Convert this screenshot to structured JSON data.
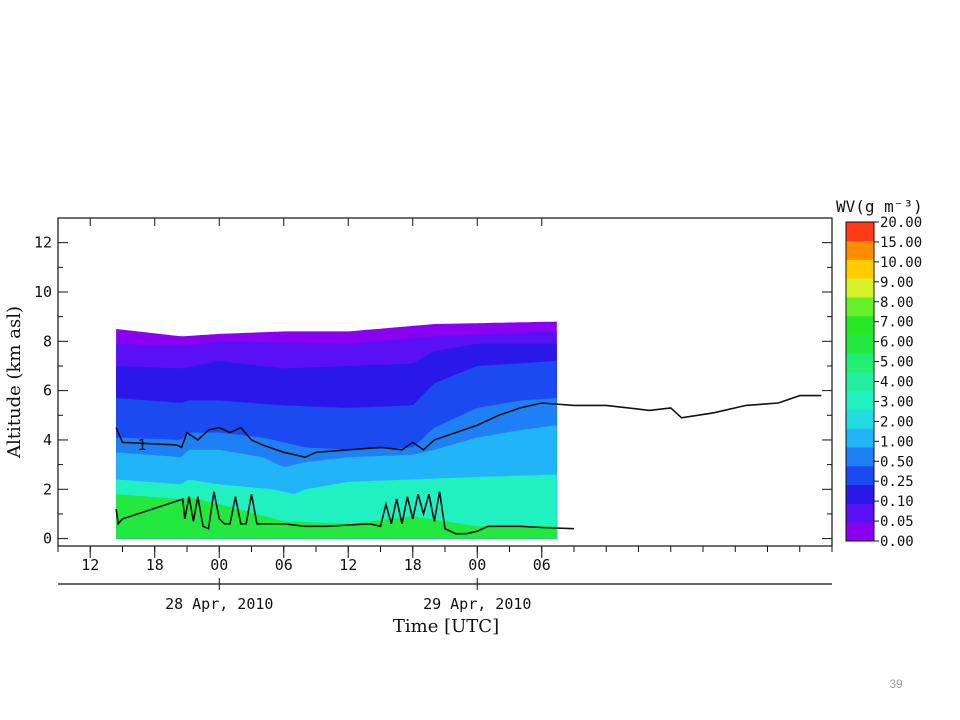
{
  "chart_data": {
    "type": "heatmap",
    "title": "",
    "ylabel": "Altitude (km asl)",
    "xlabel": "Time [UTC]",
    "ylim": [
      0,
      13
    ],
    "y_ticks": [
      0,
      2,
      4,
      6,
      8,
      10,
      12
    ],
    "x_range_hours": [
      -15,
      57
    ],
    "x_tick_labels": [
      {
        "hour": -12,
        "label": "12"
      },
      {
        "hour": -6,
        "label": "18"
      },
      {
        "hour": 0,
        "label": "00"
      },
      {
        "hour": 6,
        "label": "06"
      },
      {
        "hour": 12,
        "label": "12"
      },
      {
        "hour": 18,
        "label": "18"
      },
      {
        "hour": 24,
        "label": "00"
      },
      {
        "hour": 30,
        "label": "06"
      }
    ],
    "date_labels": [
      {
        "hour": 0,
        "label": "28 Apr, 2010"
      },
      {
        "hour": 24,
        "label": "29 Apr, 2010"
      }
    ],
    "colorbar": {
      "title": "WV(g m⁻³)",
      "levels": [
        "0.00",
        "0.05",
        "0.10",
        "0.25",
        "0.50",
        "1.00",
        "2.00",
        "3.00",
        "4.00",
        "5.00",
        "6.00",
        "7.00",
        "8.00",
        "9.00",
        "10.00",
        "15.00",
        "20.00"
      ],
      "colors": [
        "#8a00f0",
        "#5a10f5",
        "#2a18e8",
        "#1a4af0",
        "#1f7ff5",
        "#22b4f8",
        "#21dde0",
        "#21f0c0",
        "#22f0a0",
        "#22ee70",
        "#22e840",
        "#28e828",
        "#66f02a",
        "#d8f22a",
        "#ffcc00",
        "#ff8c00",
        "#ff3a14"
      ]
    },
    "data_window_hours": [
      -9.6,
      31.4
    ],
    "field_layers": [
      {
        "name": "> 5.00",
        "color": "#22e840",
        "top_km": [
          [
            -9.6,
            1.8
          ],
          [
            -3.5,
            1.6
          ],
          [
            -2.9,
            1.7
          ],
          [
            0,
            1.4
          ],
          [
            6,
            0.7
          ],
          [
            12,
            0.6
          ],
          [
            18,
            0.9
          ],
          [
            24,
            0.5
          ],
          [
            31.4,
            0.5
          ]
        ]
      },
      {
        "name": "3.00 - 5.00",
        "color": "#21f0c0",
        "top_km": [
          [
            -9.6,
            2.4
          ],
          [
            -3.5,
            2.2
          ],
          [
            -2.9,
            2.4
          ],
          [
            0,
            2.2
          ],
          [
            5,
            2.0
          ],
          [
            7,
            1.8
          ],
          [
            8,
            2.0
          ],
          [
            12,
            2.3
          ],
          [
            18,
            2.4
          ],
          [
            24,
            2.5
          ],
          [
            31.4,
            2.6
          ]
        ]
      },
      {
        "name": "1.00 - 3.00",
        "color": "#22b4f8",
        "top_km": [
          [
            -9.6,
            3.5
          ],
          [
            -3.5,
            3.3
          ],
          [
            -2.9,
            3.6
          ],
          [
            0,
            3.6
          ],
          [
            4,
            3.3
          ],
          [
            6,
            2.9
          ],
          [
            8,
            3.1
          ],
          [
            12,
            3.3
          ],
          [
            18,
            3.4
          ],
          [
            20,
            3.6
          ],
          [
            24,
            4.1
          ],
          [
            28,
            4.4
          ],
          [
            31.4,
            4.6
          ]
        ]
      },
      {
        "name": "0.50 - 1.00",
        "color": "#1f7ff5",
        "top_km": [
          [
            -9.6,
            4.1
          ],
          [
            -3.5,
            4.0
          ],
          [
            -2.9,
            4.3
          ],
          [
            0,
            4.3
          ],
          [
            4,
            4.1
          ],
          [
            6,
            3.9
          ],
          [
            8,
            3.7
          ],
          [
            12,
            3.6
          ],
          [
            18,
            3.7
          ],
          [
            20,
            4.5
          ],
          [
            24,
            5.3
          ],
          [
            28,
            5.6
          ],
          [
            31.4,
            5.7
          ]
        ]
      },
      {
        "name": "0.25 - 0.50",
        "color": "#1a4af0",
        "top_km": [
          [
            -9.6,
            5.7
          ],
          [
            -3.5,
            5.5
          ],
          [
            -2.9,
            5.6
          ],
          [
            0,
            5.6
          ],
          [
            6,
            5.4
          ],
          [
            12,
            5.3
          ],
          [
            18,
            5.4
          ],
          [
            20,
            6.3
          ],
          [
            24,
            7.0
          ],
          [
            31.4,
            7.2
          ]
        ]
      },
      {
        "name": "0.10 - 0.25",
        "color": "#2a18e8",
        "top_km": [
          [
            -9.6,
            7.0
          ],
          [
            -3.5,
            6.9
          ],
          [
            0,
            7.2
          ],
          [
            6,
            6.9
          ],
          [
            12,
            7.0
          ],
          [
            18,
            7.1
          ],
          [
            20,
            7.6
          ],
          [
            24,
            7.9
          ],
          [
            31.4,
            7.9
          ]
        ]
      },
      {
        "name": "0.05 - 0.10",
        "color": "#5a10f5",
        "top_km": [
          [
            -9.6,
            7.9
          ],
          [
            -3.5,
            7.8
          ],
          [
            0,
            8.0
          ],
          [
            12,
            7.9
          ],
          [
            20,
            8.2
          ],
          [
            31.4,
            8.4
          ]
        ]
      },
      {
        "name": "< 0.05",
        "color": "#8a00f0",
        "top_km": [
          [
            -9.6,
            8.5
          ],
          [
            -3.5,
            8.2
          ],
          [
            0,
            8.3
          ],
          [
            6,
            8.4
          ],
          [
            12,
            8.4
          ],
          [
            20,
            8.7
          ],
          [
            31.4,
            8.8
          ]
        ]
      }
    ],
    "contour_upper_1": [
      [
        -9.6,
        4.5
      ],
      [
        -9.0,
        3.9
      ],
      [
        -4.0,
        3.8
      ],
      [
        -3.5,
        3.7
      ],
      [
        -3.0,
        4.3
      ],
      [
        -2.0,
        4.0
      ],
      [
        -1.0,
        4.4
      ],
      [
        0.0,
        4.5
      ],
      [
        1.0,
        4.3
      ],
      [
        2.0,
        4.5
      ],
      [
        3.0,
        4.0
      ],
      [
        4.0,
        3.8
      ],
      [
        6.0,
        3.5
      ],
      [
        8.0,
        3.3
      ],
      [
        9.0,
        3.5
      ],
      [
        12.0,
        3.6
      ],
      [
        15.0,
        3.7
      ],
      [
        17.0,
        3.6
      ],
      [
        18.0,
        3.9
      ],
      [
        19.0,
        3.6
      ],
      [
        20.0,
        4.0
      ],
      [
        22.0,
        4.3
      ],
      [
        24.0,
        4.6
      ],
      [
        26.0,
        5.0
      ],
      [
        28.0,
        5.3
      ],
      [
        30.0,
        5.5
      ],
      [
        33.0,
        5.4
      ],
      [
        36.0,
        5.4
      ],
      [
        40.0,
        5.2
      ],
      [
        42.0,
        5.3
      ],
      [
        43.0,
        4.9
      ],
      [
        46.0,
        5.1
      ],
      [
        49.0,
        5.4
      ],
      [
        52.0,
        5.5
      ],
      [
        54.0,
        5.8
      ],
      [
        56.0,
        5.8
      ]
    ],
    "contour_lower": [
      [
        -9.6,
        1.2
      ],
      [
        -9.4,
        0.6
      ],
      [
        -9.0,
        0.8
      ],
      [
        -3.4,
        1.6
      ],
      [
        -3.2,
        0.8
      ],
      [
        -2.8,
        1.7
      ],
      [
        -2.4,
        0.7
      ],
      [
        -2.0,
        1.7
      ],
      [
        -1.5,
        0.5
      ],
      [
        -1.0,
        0.4
      ],
      [
        -0.5,
        1.9
      ],
      [
        0.0,
        0.8
      ],
      [
        0.5,
        0.6
      ],
      [
        1.0,
        0.6
      ],
      [
        1.5,
        1.7
      ],
      [
        2.0,
        0.6
      ],
      [
        2.5,
        0.6
      ],
      [
        3.0,
        1.8
      ],
      [
        3.5,
        0.6
      ],
      [
        4.0,
        0.6
      ],
      [
        6.0,
        0.6
      ],
      [
        8.0,
        0.5
      ],
      [
        10.0,
        0.5
      ],
      [
        12.0,
        0.55
      ],
      [
        14.0,
        0.6
      ],
      [
        15.0,
        0.5
      ],
      [
        15.5,
        1.4
      ],
      [
        16.0,
        0.6
      ],
      [
        16.5,
        1.6
      ],
      [
        17.0,
        0.6
      ],
      [
        17.5,
        1.7
      ],
      [
        18.0,
        0.8
      ],
      [
        18.5,
        1.8
      ],
      [
        19.0,
        1.0
      ],
      [
        19.5,
        1.8
      ],
      [
        20.0,
        0.7
      ],
      [
        20.5,
        1.9
      ],
      [
        21.0,
        0.4
      ],
      [
        22.0,
        0.2
      ],
      [
        23.0,
        0.2
      ],
      [
        24.0,
        0.3
      ],
      [
        25.0,
        0.5
      ],
      [
        28.0,
        0.5
      ],
      [
        30.0,
        0.45
      ],
      [
        33.0,
        0.4
      ]
    ],
    "contour_label": "1"
  },
  "page_number": "39"
}
